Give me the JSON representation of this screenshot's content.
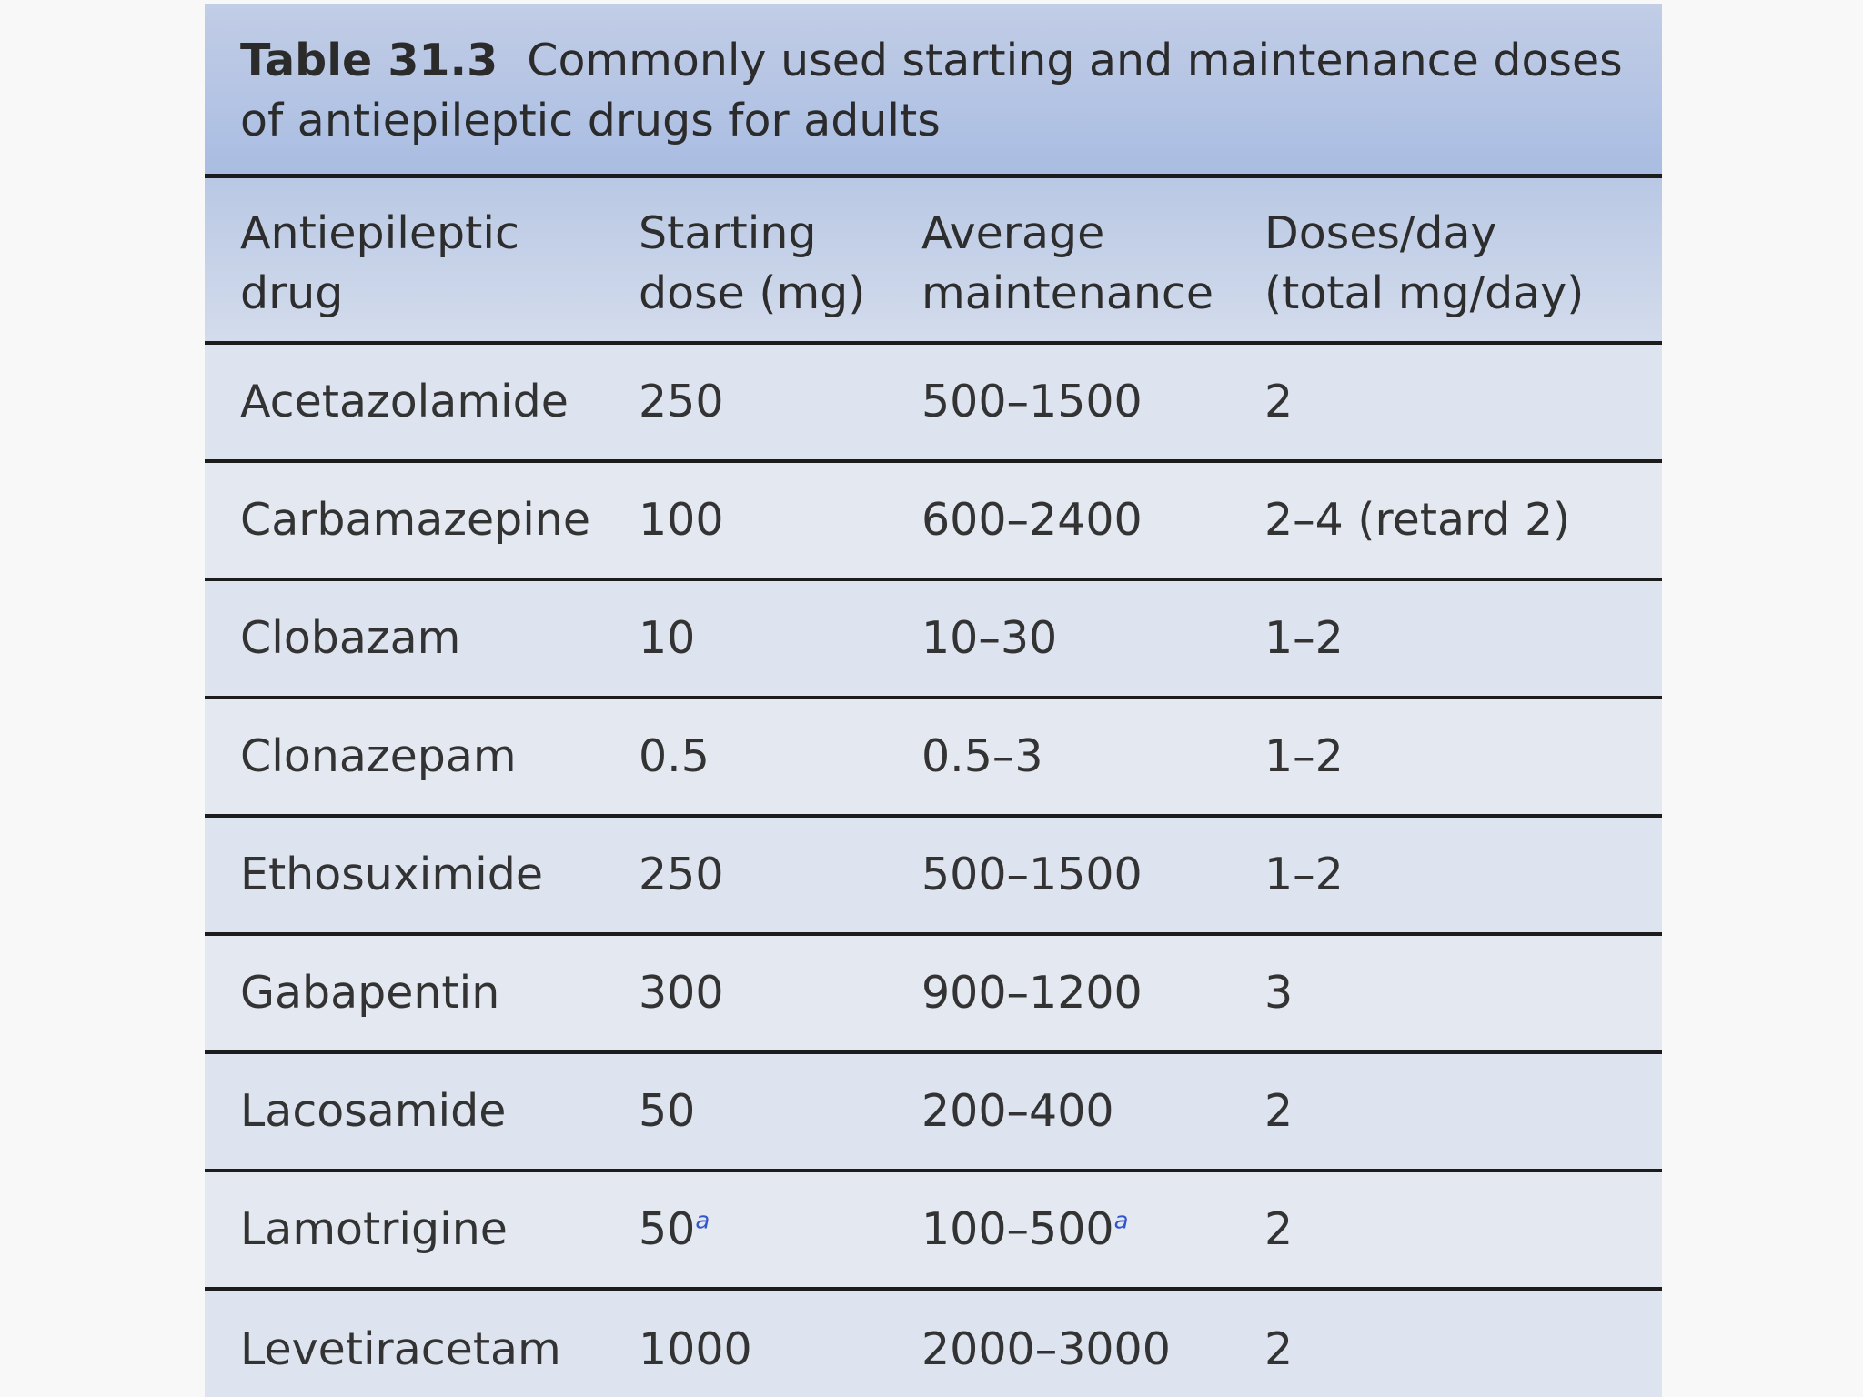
{
  "table": {
    "caption_label": "Table 31.3",
    "caption_text": "Commonly used starting and maintenance doses of antiepileptic drugs for adults",
    "headers": [
      "Antiepileptic\ndrug",
      "Starting\ndose (mg)",
      "Average\nmaintenance",
      "Doses/day\n(total mg/day)"
    ],
    "rows": [
      {
        "drug": "Acetazolamide",
        "start": "250",
        "start_note": "",
        "maint": "500–1500",
        "maint_note": "",
        "doses": "2"
      },
      {
        "drug": "Carbamazepine",
        "start": "100",
        "start_note": "",
        "maint": "600–2400",
        "maint_note": "",
        "doses": "2–4 (retard 2)"
      },
      {
        "drug": "Clobazam",
        "start": "10",
        "start_note": "",
        "maint": "10–30",
        "maint_note": "",
        "doses": "1–2"
      },
      {
        "drug": "Clonazepam",
        "start": "0.5",
        "start_note": "",
        "maint": "0.5–3",
        "maint_note": "",
        "doses": "1–2"
      },
      {
        "drug": "Ethosuximide",
        "start": "250",
        "start_note": "",
        "maint": "500–1500",
        "maint_note": "",
        "doses": "1–2"
      },
      {
        "drug": "Gabapentin",
        "start": "300",
        "start_note": "",
        "maint": "900–1200",
        "maint_note": "",
        "doses": "3"
      },
      {
        "drug": "Lacosamide",
        "start": "50",
        "start_note": "",
        "maint": "200–400",
        "maint_note": "",
        "doses": "2"
      },
      {
        "drug": "Lamotrigine",
        "start": "50",
        "start_note": "a",
        "maint": "100–500",
        "maint_note": "a",
        "doses": "2"
      },
      {
        "drug": "Levetiracetam",
        "start": "1000",
        "start_note": "",
        "maint": "2000–3000",
        "maint_note": "",
        "doses": "2"
      }
    ]
  }
}
